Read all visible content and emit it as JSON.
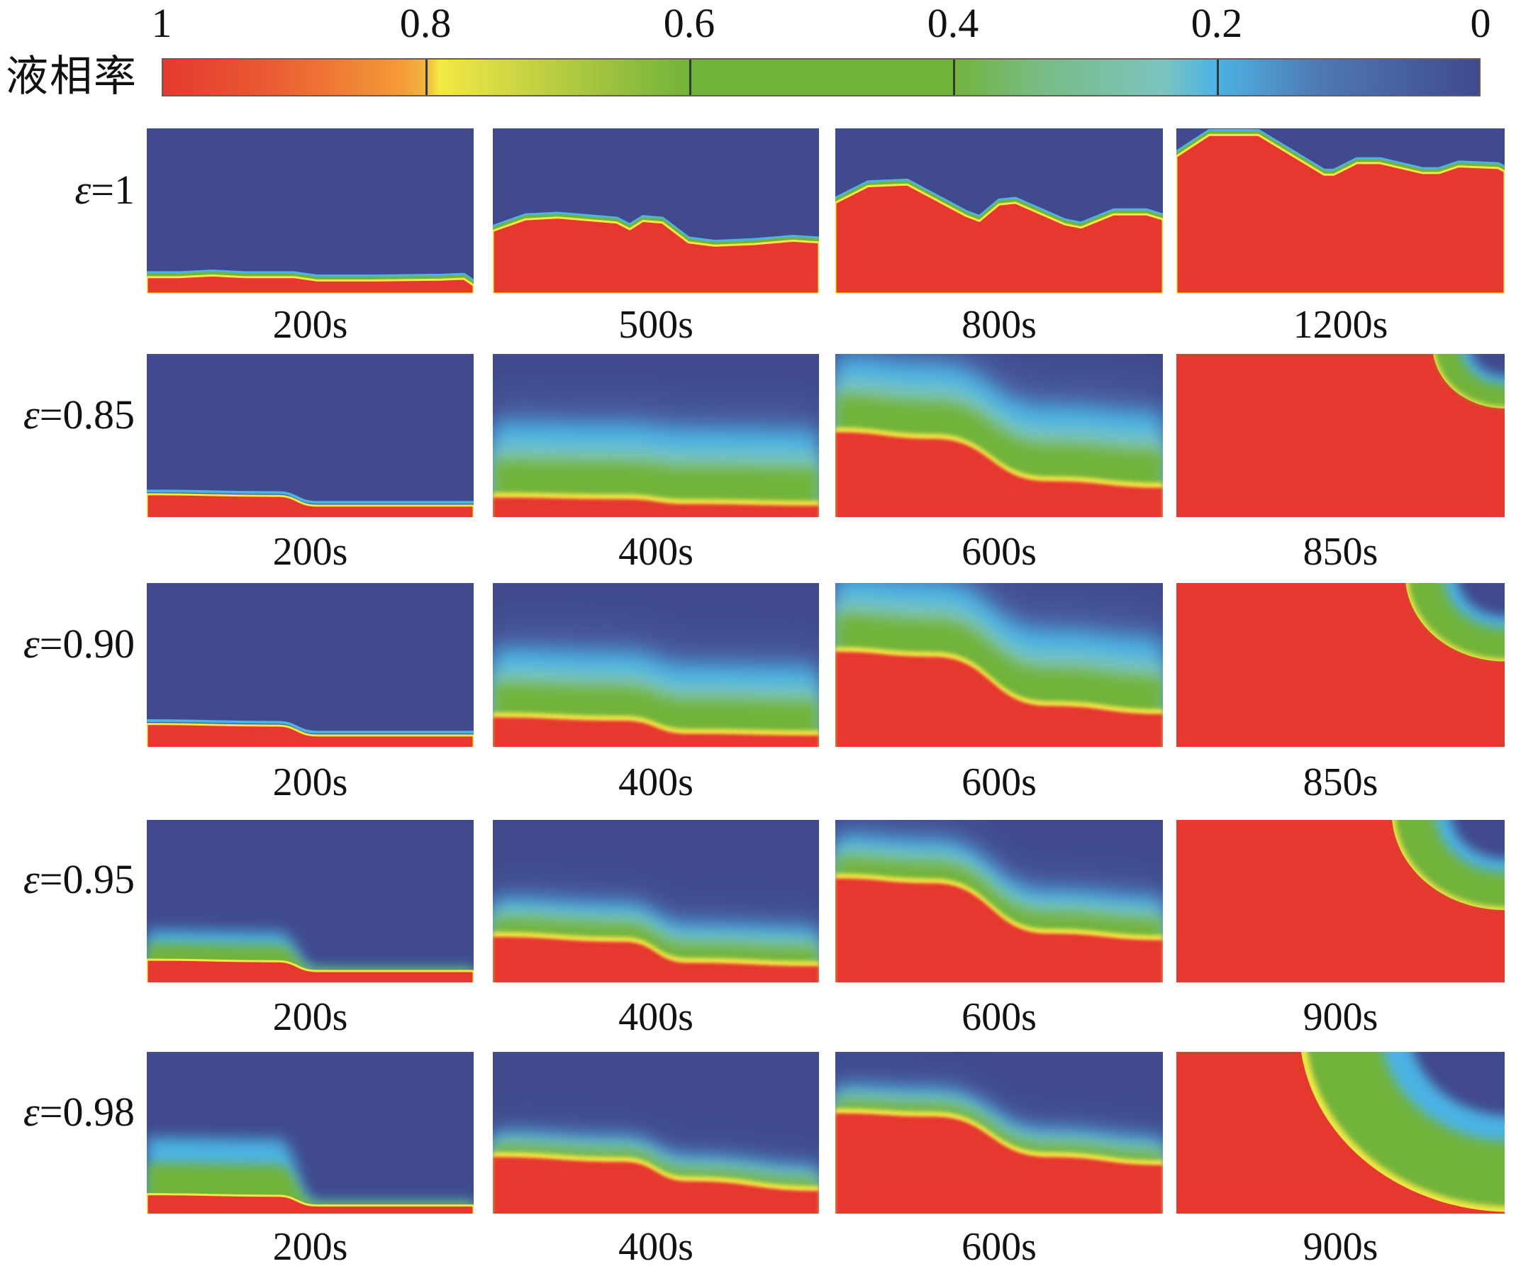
{
  "colorbar": {
    "title": "液相率",
    "ticks": [
      "1",
      "0.8",
      "0.6",
      "0.4",
      "0.2",
      "0"
    ],
    "tick_values": [
      1,
      0.8,
      0.6,
      0.4,
      0.2,
      0
    ],
    "colors": {
      "liquid_red": "#e5392f",
      "orange": "#f39a37",
      "yellow": "#f3e845",
      "green": "#72b33a",
      "teal": "#7cc4bf",
      "cyan": "#4cb3e4",
      "solid_blue": "#404a8c"
    }
  },
  "rows": [
    {
      "eps_symbol": "ε",
      "eps_value": "=1",
      "times": [
        "200s",
        "500s",
        "800s",
        "1200s"
      ]
    },
    {
      "eps_symbol": "ε",
      "eps_value": "=0.85",
      "times": [
        "200s",
        "400s",
        "600s",
        "850s"
      ]
    },
    {
      "eps_symbol": "ε",
      "eps_value": "=0.90",
      "times": [
        "200s",
        "400s",
        "600s",
        "850s"
      ]
    },
    {
      "eps_symbol": "ε",
      "eps_value": "=0.95",
      "times": [
        "200s",
        "400s",
        "600s",
        "900s"
      ]
    },
    {
      "eps_symbol": "ε",
      "eps_value": "=0.98",
      "times": [
        "200s",
        "400s",
        "600s",
        "900s"
      ]
    }
  ]
}
